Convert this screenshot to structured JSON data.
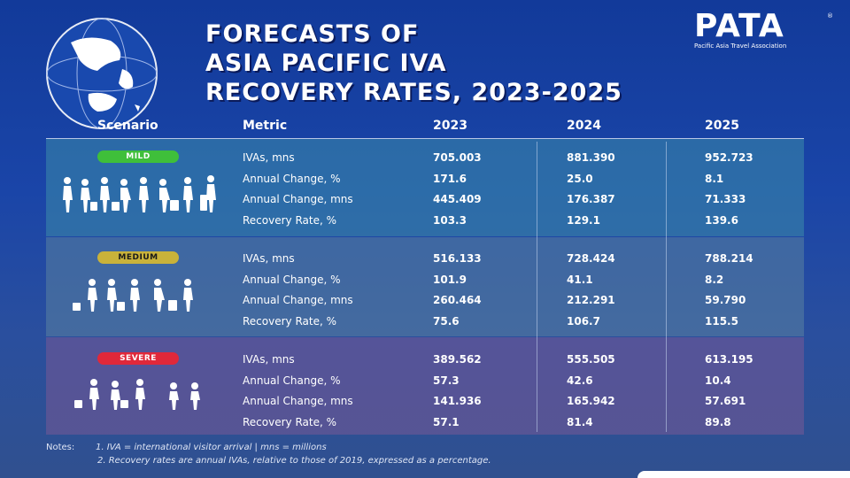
{
  "title": {
    "line1": "FORECASTS OF",
    "line2": "ASIA PACIFIC IVA",
    "line3": "RECOVERY RATES, 2023-2025"
  },
  "logo": {
    "text": "PATA",
    "subtitle": "Pacific Asia Travel Association",
    "registered": "®"
  },
  "header": {
    "scenario": "Scenario",
    "metric": "Metric",
    "y2023": "2023",
    "y2024": "2024",
    "y2025": "2025"
  },
  "colors": {
    "mild": "#3fbf3a",
    "medium": "#c9b23a",
    "severe": "#e0283a"
  },
  "scenarios": [
    {
      "name": "MILD",
      "rows": [
        {
          "metric": "IVAs, mns",
          "v2023": "705.003",
          "v2024": "881.390",
          "v2025": "952.723"
        },
        {
          "metric": "Annual Change, %",
          "v2023": "171.6",
          "v2024": "25.0",
          "v2025": "8.1"
        },
        {
          "metric": "Annual Change, mns",
          "v2023": "445.409",
          "v2024": "176.387",
          "v2025": "71.333"
        },
        {
          "metric": "Recovery Rate, %",
          "v2023": "103.3",
          "v2024": "129.1",
          "v2025": "139.6"
        }
      ]
    },
    {
      "name": "MEDIUM",
      "rows": [
        {
          "metric": "IVAs, mns",
          "v2023": "516.133",
          "v2024": "728.424",
          "v2025": "788.214"
        },
        {
          "metric": "Annual Change, %",
          "v2023": "101.9",
          "v2024": "41.1",
          "v2025": "8.2"
        },
        {
          "metric": "Annual Change, mns",
          "v2023": "260.464",
          "v2024": "212.291",
          "v2025": "59.790"
        },
        {
          "metric": "Recovery Rate, %",
          "v2023": "75.6",
          "v2024": "106.7",
          "v2025": "115.5"
        }
      ]
    },
    {
      "name": "SEVERE",
      "rows": [
        {
          "metric": "IVAs, mns",
          "v2023": "389.562",
          "v2024": "555.505",
          "v2025": "613.195"
        },
        {
          "metric": "Annual Change, %",
          "v2023": "57.3",
          "v2024": "42.6",
          "v2025": "10.4"
        },
        {
          "metric": "Annual Change, mns",
          "v2023": "141.936",
          "v2024": "165.942",
          "v2025": "57.691"
        },
        {
          "metric": "Recovery Rate, %",
          "v2023": "57.1",
          "v2024": "81.4",
          "v2025": "89.8"
        }
      ]
    }
  ],
  "notes": {
    "label": "Notes:",
    "note1": "1. IVA = international visitor arrival | mns = millions",
    "note2": "2. Recovery rates are annual IVAs, relative to those of 2019, expressed as a percentage."
  },
  "icons": {
    "globe": "globe-icon",
    "travelers": "travelers-icon"
  }
}
